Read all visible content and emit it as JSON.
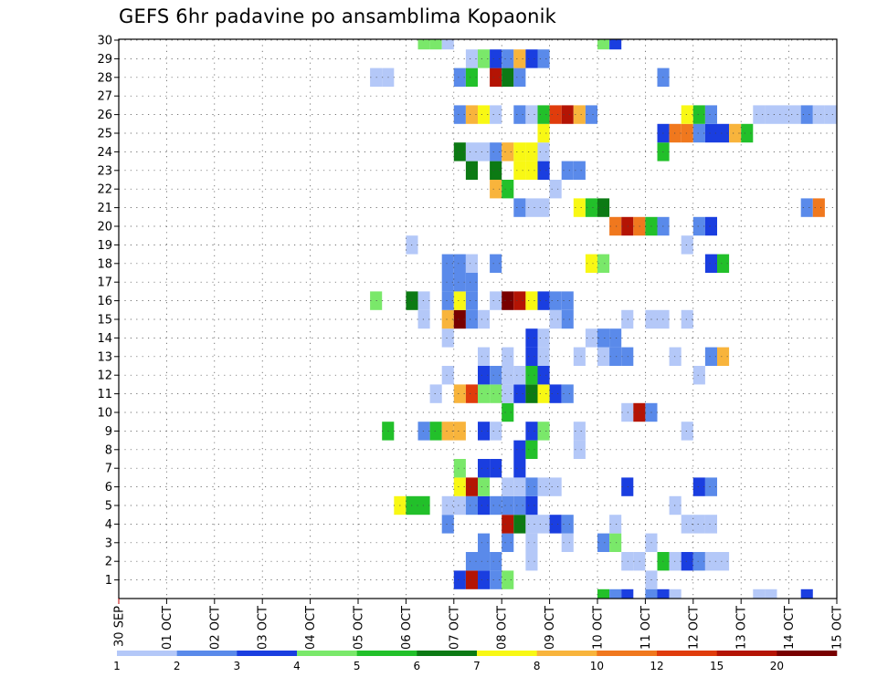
{
  "chart_data": {
    "type": "heatmap",
    "title": "GEFS 6hr padavine po ansamblima Kopaonik",
    "x_ticks": [
      "30 SEP",
      "01 OCT",
      "02 OCT",
      "03 OCT",
      "04 OCT",
      "05 OCT",
      "06 OCT",
      "07 OCT",
      "08 OCT",
      "09 OCT",
      "10 OCT",
      "11 OCT",
      "12 OCT",
      "13 OCT",
      "14 OCT",
      "15 OCT"
    ],
    "y_ticks": [
      "1",
      "2",
      "3",
      "4",
      "5",
      "6",
      "7",
      "8",
      "9",
      "10",
      "11",
      "12",
      "13",
      "14",
      "15",
      "16",
      "17",
      "18",
      "19",
      "20",
      "21",
      "22",
      "23",
      "24",
      "25",
      "26",
      "27",
      "28",
      "29",
      "30"
    ],
    "x_steps_per_day": 4,
    "colorbar": {
      "labels": [
        "1",
        "2",
        "3",
        "4",
        "5",
        "6",
        "7",
        "8",
        "10",
        "12",
        "15",
        "20"
      ],
      "colors": [
        "#b4c8f8",
        "#5a8aea",
        "#1a3ee0",
        "#7ae86a",
        "#22c02a",
        "#0c7a14",
        "#f8f814",
        "#f8b43c",
        "#f0781e",
        "#e03c0c",
        "#b41404",
        "#780000"
      ]
    },
    "grid": true,
    "cells": [
      [
        1,
        28,
        3
      ],
      [
        1,
        29,
        11
      ],
      [
        1,
        30,
        3
      ],
      [
        1,
        31,
        2
      ],
      [
        1,
        32,
        4
      ],
      [
        1,
        44,
        1
      ],
      [
        2,
        29,
        2
      ],
      [
        2,
        30,
        2
      ],
      [
        2,
        31,
        2
      ],
      [
        2,
        34,
        1
      ],
      [
        2,
        42,
        1
      ],
      [
        2,
        43,
        1
      ],
      [
        2,
        45,
        5
      ],
      [
        2,
        46,
        1
      ],
      [
        2,
        47,
        3
      ],
      [
        2,
        48,
        2
      ],
      [
        2,
        49,
        1
      ],
      [
        2,
        50,
        1
      ],
      [
        3,
        30,
        2
      ],
      [
        3,
        32,
        2
      ],
      [
        3,
        34,
        1
      ],
      [
        3,
        37,
        1
      ],
      [
        3,
        40,
        2
      ],
      [
        3,
        41,
        4
      ],
      [
        3,
        44,
        1
      ],
      [
        4,
        27,
        2
      ],
      [
        4,
        32,
        11
      ],
      [
        4,
        33,
        6
      ],
      [
        4,
        34,
        1
      ],
      [
        4,
        35,
        1
      ],
      [
        4,
        36,
        3
      ],
      [
        4,
        37,
        2
      ],
      [
        4,
        41,
        1
      ],
      [
        4,
        47,
        1
      ],
      [
        4,
        48,
        1
      ],
      [
        4,
        49,
        1
      ],
      [
        5,
        23,
        7
      ],
      [
        5,
        24,
        5
      ],
      [
        5,
        25,
        5
      ],
      [
        5,
        27,
        1
      ],
      [
        5,
        28,
        1
      ],
      [
        5,
        29,
        2
      ],
      [
        5,
        30,
        3
      ],
      [
        5,
        31,
        2
      ],
      [
        5,
        32,
        2
      ],
      [
        5,
        33,
        2
      ],
      [
        5,
        34,
        3
      ],
      [
        5,
        46,
        1
      ],
      [
        6,
        28,
        7
      ],
      [
        6,
        29,
        11
      ],
      [
        6,
        30,
        4
      ],
      [
        6,
        32,
        1
      ],
      [
        6,
        33,
        1
      ],
      [
        6,
        34,
        2
      ],
      [
        6,
        35,
        1
      ],
      [
        6,
        36,
        1
      ],
      [
        6,
        42,
        3
      ],
      [
        6,
        48,
        3
      ],
      [
        6,
        49,
        2
      ],
      [
        7,
        28,
        4
      ],
      [
        7,
        30,
        3
      ],
      [
        7,
        31,
        3
      ],
      [
        7,
        33,
        3
      ],
      [
        8,
        33,
        3
      ],
      [
        8,
        34,
        5
      ],
      [
        8,
        38,
        1
      ],
      [
        9,
        22,
        5
      ],
      [
        9,
        25,
        2
      ],
      [
        9,
        26,
        5
      ],
      [
        9,
        27,
        8
      ],
      [
        9,
        28,
        8
      ],
      [
        9,
        30,
        3
      ],
      [
        9,
        31,
        1
      ],
      [
        9,
        34,
        3
      ],
      [
        9,
        35,
        4
      ],
      [
        9,
        38,
        1
      ],
      [
        9,
        47,
        1
      ],
      [
        10,
        32,
        5
      ],
      [
        10,
        42,
        1
      ],
      [
        10,
        43,
        11
      ],
      [
        10,
        44,
        2
      ],
      [
        11,
        26,
        1
      ],
      [
        11,
        28,
        8
      ],
      [
        11,
        29,
        10
      ],
      [
        11,
        30,
        4
      ],
      [
        11,
        31,
        4
      ],
      [
        11,
        32,
        1
      ],
      [
        11,
        33,
        3
      ],
      [
        11,
        34,
        6
      ],
      [
        11,
        35,
        7
      ],
      [
        11,
        36,
        3
      ],
      [
        11,
        37,
        2
      ],
      [
        12,
        27,
        1
      ],
      [
        12,
        30,
        3
      ],
      [
        12,
        31,
        2
      ],
      [
        12,
        32,
        1
      ],
      [
        12,
        33,
        1
      ],
      [
        12,
        34,
        5
      ],
      [
        12,
        35,
        3
      ],
      [
        12,
        48,
        1
      ],
      [
        13,
        30,
        1
      ],
      [
        13,
        32,
        1
      ],
      [
        13,
        34,
        3
      ],
      [
        13,
        35,
        1
      ],
      [
        13,
        38,
        1
      ],
      [
        13,
        40,
        1
      ],
      [
        13,
        41,
        2
      ],
      [
        13,
        42,
        2
      ],
      [
        13,
        46,
        1
      ],
      [
        13,
        49,
        2
      ],
      [
        13,
        50,
        8
      ],
      [
        14,
        27,
        1
      ],
      [
        14,
        34,
        3
      ],
      [
        14,
        35,
        1
      ],
      [
        14,
        39,
        1
      ],
      [
        14,
        40,
        2
      ],
      [
        14,
        41,
        2
      ],
      [
        15,
        25,
        1
      ],
      [
        15,
        27,
        8
      ],
      [
        15,
        28,
        12
      ],
      [
        15,
        29,
        2
      ],
      [
        15,
        30,
        1
      ],
      [
        15,
        36,
        1
      ],
      [
        15,
        37,
        2
      ],
      [
        15,
        42,
        1
      ],
      [
        15,
        44,
        1
      ],
      [
        15,
        45,
        1
      ],
      [
        15,
        47,
        1
      ],
      [
        16,
        21,
        4
      ],
      [
        16,
        24,
        6
      ],
      [
        16,
        25,
        1
      ],
      [
        16,
        27,
        2
      ],
      [
        16,
        28,
        7
      ],
      [
        16,
        29,
        2
      ],
      [
        16,
        31,
        1
      ],
      [
        16,
        32,
        12
      ],
      [
        16,
        33,
        11
      ],
      [
        16,
        34,
        7
      ],
      [
        16,
        35,
        3
      ],
      [
        16,
        36,
        2
      ],
      [
        16,
        37,
        2
      ],
      [
        17,
        27,
        2
      ],
      [
        17,
        28,
        2
      ],
      [
        17,
        29,
        2
      ],
      [
        18,
        27,
        2
      ],
      [
        18,
        28,
        2
      ],
      [
        18,
        29,
        1
      ],
      [
        18,
        31,
        2
      ],
      [
        18,
        39,
        7
      ],
      [
        18,
        40,
        4
      ],
      [
        18,
        49,
        3
      ],
      [
        18,
        50,
        5
      ],
      [
        19,
        24,
        1
      ],
      [
        19,
        47,
        1
      ],
      [
        20,
        41,
        9
      ],
      [
        20,
        42,
        11
      ],
      [
        20,
        43,
        9
      ],
      [
        20,
        44,
        5
      ],
      [
        20,
        45,
        2
      ],
      [
        20,
        48,
        2
      ],
      [
        20,
        49,
        3
      ],
      [
        21,
        33,
        2
      ],
      [
        21,
        34,
        1
      ],
      [
        21,
        35,
        1
      ],
      [
        21,
        38,
        7
      ],
      [
        21,
        39,
        5
      ],
      [
        21,
        40,
        6
      ],
      [
        21,
        57,
        2
      ],
      [
        21,
        58,
        9
      ],
      [
        22,
        31,
        8
      ],
      [
        22,
        32,
        5
      ],
      [
        22,
        36,
        1
      ],
      [
        23,
        29,
        6
      ],
      [
        23,
        31,
        6
      ],
      [
        23,
        33,
        7
      ],
      [
        23,
        34,
        7
      ],
      [
        23,
        35,
        3
      ],
      [
        23,
        37,
        2
      ],
      [
        23,
        38,
        2
      ],
      [
        24,
        28,
        6
      ],
      [
        24,
        29,
        1
      ],
      [
        24,
        30,
        1
      ],
      [
        24,
        31,
        2
      ],
      [
        24,
        32,
        8
      ],
      [
        24,
        33,
        7
      ],
      [
        24,
        34,
        7
      ],
      [
        24,
        35,
        1
      ],
      [
        24,
        45,
        5
      ],
      [
        25,
        35,
        7
      ],
      [
        25,
        45,
        3
      ],
      [
        25,
        46,
        9
      ],
      [
        25,
        47,
        9
      ],
      [
        25,
        48,
        2
      ],
      [
        25,
        49,
        3
      ],
      [
        25,
        50,
        3
      ],
      [
        25,
        51,
        8
      ],
      [
        25,
        52,
        5
      ],
      [
        26,
        28,
        2
      ],
      [
        26,
        29,
        8
      ],
      [
        26,
        30,
        7
      ],
      [
        26,
        31,
        1
      ],
      [
        26,
        33,
        2
      ],
      [
        26,
        34,
        1
      ],
      [
        26,
        35,
        5
      ],
      [
        26,
        36,
        10
      ],
      [
        26,
        37,
        11
      ],
      [
        26,
        38,
        8
      ],
      [
        26,
        39,
        2
      ],
      [
        26,
        47,
        7
      ],
      [
        26,
        48,
        5
      ],
      [
        26,
        49,
        2
      ],
      [
        26,
        53,
        1
      ],
      [
        26,
        54,
        1
      ],
      [
        26,
        55,
        1
      ],
      [
        26,
        56,
        1
      ],
      [
        26,
        57,
        2
      ],
      [
        26,
        58,
        1
      ],
      [
        26,
        59,
        1
      ],
      [
        28,
        21,
        1
      ],
      [
        28,
        22,
        1
      ],
      [
        28,
        28,
        2
      ],
      [
        28,
        29,
        5
      ],
      [
        28,
        31,
        11
      ],
      [
        28,
        32,
        6
      ],
      [
        28,
        33,
        2
      ],
      [
        28,
        45,
        2
      ],
      [
        29,
        29,
        1
      ],
      [
        29,
        30,
        4
      ],
      [
        29,
        31,
        3
      ],
      [
        29,
        32,
        2
      ],
      [
        29,
        33,
        8
      ],
      [
        29,
        34,
        3
      ],
      [
        29,
        35,
        2
      ],
      [
        30,
        25,
        4
      ],
      [
        30,
        26,
        4
      ],
      [
        30,
        27,
        1
      ],
      [
        30,
        40,
        4
      ],
      [
        30,
        41,
        3
      ],
      [
        0,
        40,
        5
      ],
      [
        0,
        41,
        2
      ],
      [
        0,
        42,
        3
      ],
      [
        0,
        44,
        2
      ],
      [
        0,
        45,
        3
      ],
      [
        0,
        46,
        1
      ],
      [
        0,
        53,
        1
      ],
      [
        0,
        54,
        1
      ],
      [
        0,
        57,
        3
      ]
    ]
  }
}
